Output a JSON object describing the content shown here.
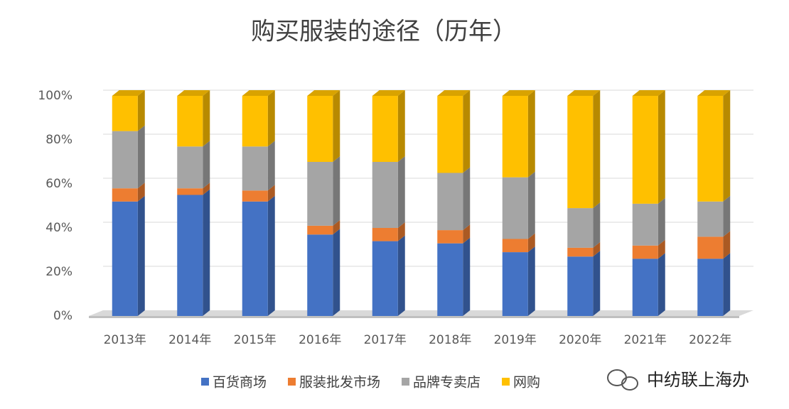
{
  "chart_data": {
    "type": "bar3d_stacked",
    "title": "购买服装的途径（历年）",
    "categories": [
      "2013年",
      "2014年",
      "2015年",
      "2016年",
      "2017年",
      "2018年",
      "2019年",
      "2020年",
      "2021年",
      "2022年"
    ],
    "series": [
      {
        "name": "百货商场",
        "color": "#4472c4",
        "values": [
          52,
          55,
          52,
          37,
          34,
          33,
          29,
          27,
          26,
          26
        ]
      },
      {
        "name": "服装批发市场",
        "color": "#ed7d31",
        "values": [
          6,
          3,
          5,
          4,
          6,
          6,
          6,
          4,
          6,
          10
        ]
      },
      {
        "name": "品牌专卖店",
        "color": "#a5a5a5",
        "values": [
          26,
          19,
          20,
          29,
          30,
          26,
          28,
          18,
          19,
          16
        ]
      },
      {
        "name": "网购",
        "color": "#ffc000",
        "values": [
          16,
          23,
          23,
          30,
          30,
          35,
          37,
          51,
          49,
          48
        ]
      }
    ],
    "ylim": [
      0,
      100
    ],
    "yticks": [
      {
        "value": 0,
        "label": "0%"
      },
      {
        "value": 20,
        "label": "20%"
      },
      {
        "value": 40,
        "label": "40%"
      },
      {
        "value": 60,
        "label": "60%"
      },
      {
        "value": 80,
        "label": "80%"
      },
      {
        "value": 100,
        "label": "100%"
      }
    ],
    "grid": true,
    "legend": "bottom",
    "annotation": "中纺联上海办"
  }
}
